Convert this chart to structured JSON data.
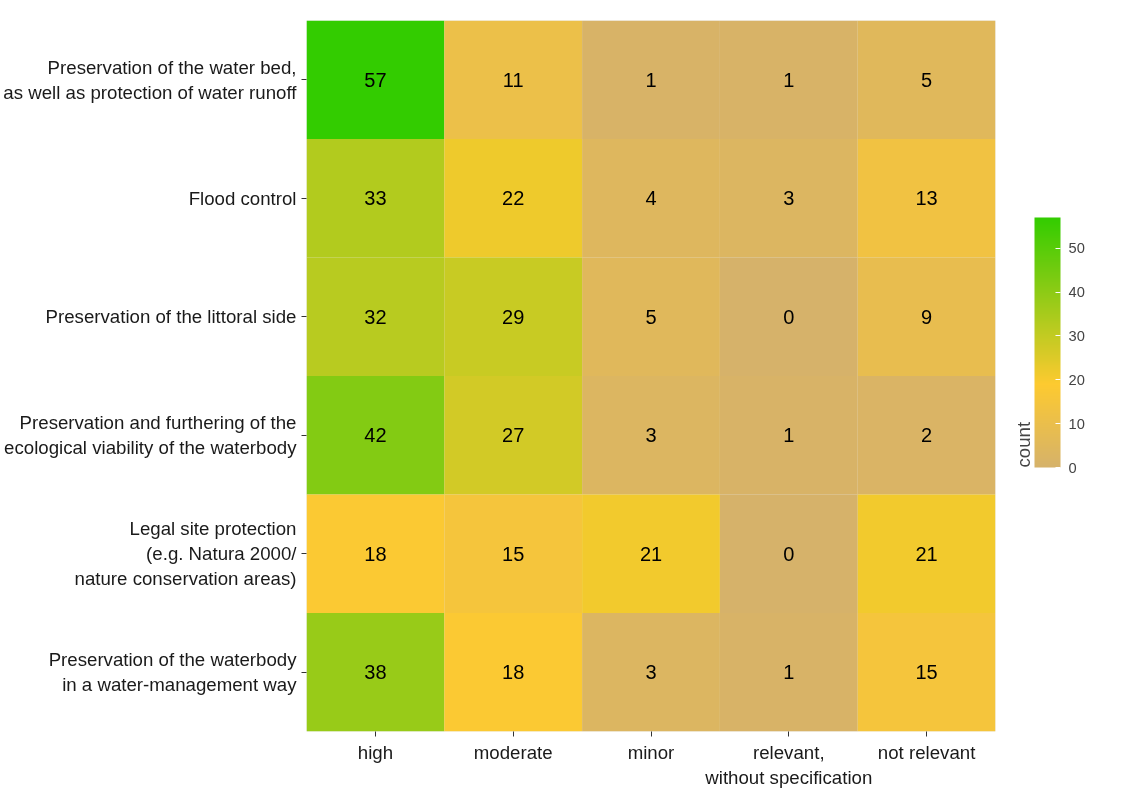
{
  "chart_data": {
    "type": "heatmap",
    "clabel": "count",
    "categories": [
      "high",
      "moderate",
      "minor",
      "relevant,\nwithout specification",
      "not relevant"
    ],
    "y_categories": [
      "Preservation of the water bed,\nas well as protection of water runoff",
      "Flood control",
      "Preservation of the littoral side",
      "Preservation and furthering of the\necological viability of the waterbody",
      "Legal site protection\n(e.g. Natura 2000/\nnature conservation areas)",
      "Preservation of the waterbody\nin a water-management way"
    ],
    "cells": [
      [
        57,
        11,
        1,
        1,
        5
      ],
      [
        33,
        22,
        4,
        3,
        13
      ],
      [
        32,
        29,
        5,
        0,
        9
      ],
      [
        42,
        27,
        3,
        1,
        2
      ],
      [
        18,
        15,
        21,
        0,
        21
      ],
      [
        38,
        18,
        3,
        1,
        15
      ]
    ],
    "clim": [
      0,
      57
    ],
    "cticks": [
      0,
      10,
      20,
      30,
      40,
      50
    ],
    "colors": [
      "#d6b26a",
      "#fdca30",
      "#98cb18",
      "#33cc00"
    ],
    "data_labels": true
  }
}
